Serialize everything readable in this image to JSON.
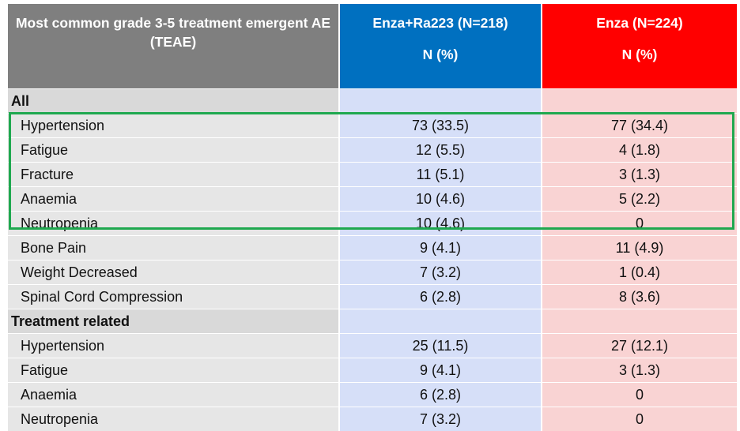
{
  "header": {
    "col0": "Most common grade 3-5 treatment emergent AE (TEAE)",
    "col1": "Enza+Ra223 (N=218)",
    "col2": "Enza (N=224)",
    "col1_sub": "N (%)",
    "col2_sub": "N (%)"
  },
  "rows": [
    {
      "label": "All",
      "v1": "",
      "v2": "",
      "section": true
    },
    {
      "label": "Hypertension",
      "v1": "73 (33.5)",
      "v2": "77 (34.4)"
    },
    {
      "label": "Fatigue",
      "v1": "12 (5.5)",
      "v2": "4 (1.8)"
    },
    {
      "label": "Fracture",
      "v1": "11 (5.1)",
      "v2": "3 (1.3)"
    },
    {
      "label": "Anaemia",
      "v1": "10 (4.6)",
      "v2": "5 (2.2)"
    },
    {
      "label": "Neutropenia",
      "v1": "10 (4.6)",
      "v2": "0"
    },
    {
      "label": "Bone Pain",
      "v1": "9 (4.1)",
      "v2": "11 (4.9)"
    },
    {
      "label": "Weight Decreased",
      "v1": "7 (3.2)",
      "v2": "1 (0.4)"
    },
    {
      "label": "Spinal Cord Compression",
      "v1": "6 (2.8)",
      "v2": "8 (3.6)"
    },
    {
      "label": "Treatment related",
      "v1": "",
      "v2": "",
      "section": true
    },
    {
      "label": "Hypertension",
      "v1": "25 (11.5)",
      "v2": "27 (12.1)"
    },
    {
      "label": "Fatigue",
      "v1": "9 (4.1)",
      "v2": "3 (1.3)"
    },
    {
      "label": "Anaemia",
      "v1": "6 (2.8)",
      "v2": "0"
    },
    {
      "label": "Neutropenia",
      "v1": "7 (3.2)",
      "v2": "0"
    }
  ],
  "colors": {
    "header_label": "#7f7f7f",
    "header_enza_ra223": "#0070c0",
    "header_enza": "#ff0000",
    "highlight_box": "#1fa84f"
  }
}
